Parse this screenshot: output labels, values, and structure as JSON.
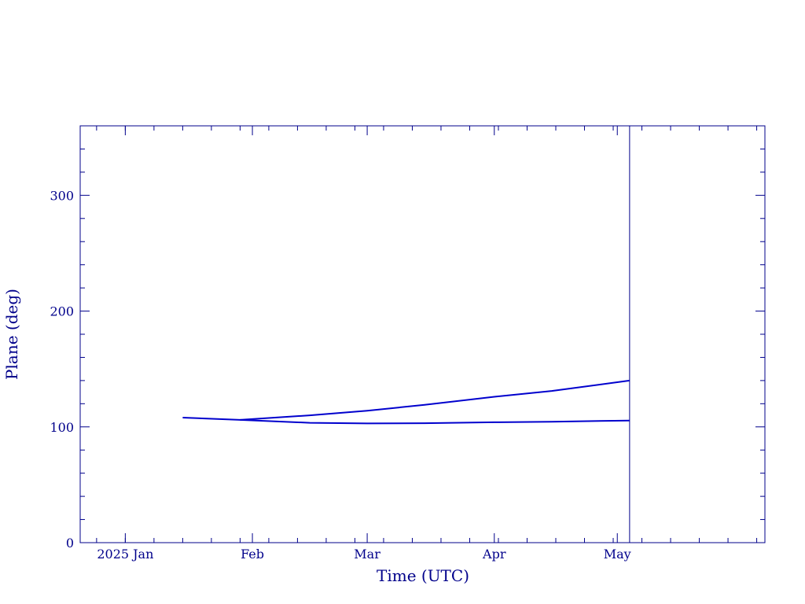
{
  "colors": {
    "axis": "#00008b",
    "series": "#0000cd",
    "background": "#ffffff"
  },
  "chart_data": {
    "type": "line",
    "title": "",
    "xlabel": "Time (UTC)",
    "ylabel": "Plane (deg)",
    "x_type": "date",
    "xlim": [
      "2024-12-21",
      "2025-06-06"
    ],
    "ylim": [
      0,
      360
    ],
    "y_ticks": [
      0,
      100,
      200,
      300
    ],
    "y_tick_labels": [
      "0",
      "100",
      "200",
      "300"
    ],
    "x_tick_labels": [
      {
        "date": "2025-01-01",
        "label": "2025 Jan"
      },
      {
        "date": "2025-02-01",
        "label": "Feb"
      },
      {
        "date": "2025-03-01",
        "label": "Mar"
      },
      {
        "date": "2025-04-01",
        "label": "Apr"
      },
      {
        "date": "2025-05-01",
        "label": "May"
      }
    ],
    "marker_date": "2025-05-04",
    "grid": false,
    "series": [
      {
        "x": [
          "2025-01-15",
          "2025-01-29",
          "2025-02-15",
          "2025-03-01",
          "2025-03-15",
          "2025-04-01",
          "2025-04-15",
          "2025-05-04"
        ],
        "y": [
          108,
          106,
          110,
          114,
          119,
          126,
          131,
          140
        ]
      },
      {
        "x": [
          "2025-01-29",
          "2025-02-15",
          "2025-03-01",
          "2025-03-15",
          "2025-04-01",
          "2025-04-15",
          "2025-05-04"
        ],
        "y": [
          106,
          103.5,
          103,
          103.2,
          104,
          104.5,
          105.5
        ]
      }
    ]
  }
}
